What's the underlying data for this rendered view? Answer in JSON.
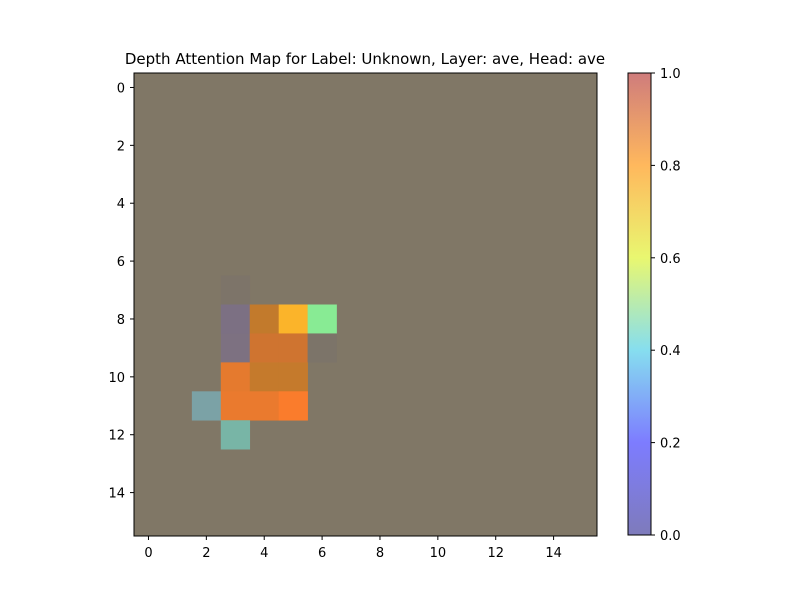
{
  "chart_data": {
    "type": "heatmap",
    "title": "Depth Attention Map for Label: Unknown, Layer: ave, Head: ave",
    "xlabel": "",
    "ylabel": "",
    "rows": 16,
    "cols": 16,
    "xlim": [
      -0.5,
      15.5
    ],
    "ylim": [
      15.5,
      -0.5
    ],
    "x_ticks": [
      0,
      2,
      4,
      6,
      8,
      10,
      12,
      14
    ],
    "y_ticks": [
      0,
      2,
      4,
      6,
      8,
      10,
      12,
      14
    ],
    "grid": false,
    "background_color": "#807766",
    "default_value": 0.0,
    "cells": [
      {
        "row": 7,
        "col": 3,
        "color": "#7d7469"
      },
      {
        "row": 8,
        "col": 3,
        "color": "#7c7083"
      },
      {
        "row": 8,
        "col": 4,
        "color": "#c27a2c"
      },
      {
        "row": 8,
        "col": 5,
        "color": "#fbb42a"
      },
      {
        "row": 8,
        "col": 6,
        "color": "#88eb94"
      },
      {
        "row": 9,
        "col": 3,
        "color": "#7d7181"
      },
      {
        "row": 9,
        "col": 4,
        "color": "#cf7430"
      },
      {
        "row": 9,
        "col": 5,
        "color": "#cf7430"
      },
      {
        "row": 9,
        "col": 6,
        "color": "#7c7469"
      },
      {
        "row": 10,
        "col": 3,
        "color": "#e57a2e"
      },
      {
        "row": 10,
        "col": 4,
        "color": "#c57a2c"
      },
      {
        "row": 10,
        "col": 5,
        "color": "#c57a2c"
      },
      {
        "row": 11,
        "col": 2,
        "color": "#7ba2a6"
      },
      {
        "row": 11,
        "col": 3,
        "color": "#ea7a2e"
      },
      {
        "row": 11,
        "col": 4,
        "color": "#ea7a2e"
      },
      {
        "row": 11,
        "col": 5,
        "color": "#fa7c2c"
      },
      {
        "row": 12,
        "col": 3,
        "color": "#78b5a6"
      }
    ],
    "colorbar": {
      "min": 0.0,
      "max": 1.0,
      "ticks": [
        "0.0",
        "0.2",
        "0.4",
        "0.6",
        "0.8",
        "1.0"
      ],
      "stops": [
        "#7e7bbb",
        "#7d7cff",
        "#86deef",
        "#e9f770",
        "#ffb85d",
        "#cf7c7c"
      ]
    }
  }
}
